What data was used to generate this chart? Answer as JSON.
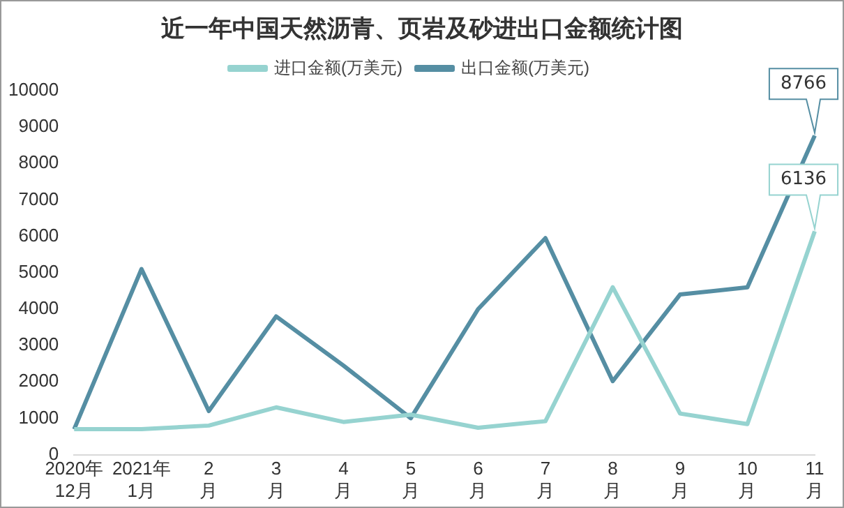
{
  "chart_data": {
    "type": "line",
    "title": "近一年中国天然沥青、页岩及砂进出口金额统计图",
    "categories": [
      "2020年\n12月",
      "2021年\n1月",
      "2\n月",
      "3\n月",
      "4\n月",
      "5\n月",
      "6\n月",
      "7\n月",
      "8\n月",
      "9\n月",
      "10\n月",
      "11\n月"
    ],
    "series": [
      {
        "name": "进口金额(万美元)",
        "color": "#96d3d0",
        "values": [
          700,
          700,
          800,
          1300,
          900,
          1100,
          740,
          920,
          4600,
          1130,
          840,
          6136
        ],
        "value_labels": [
          null,
          null,
          null,
          null,
          null,
          null,
          null,
          null,
          null,
          null,
          null,
          "6136"
        ]
      },
      {
        "name": "出口金额(万美元)",
        "color": "#558ea3",
        "values": [
          700,
          5100,
          1200,
          3800,
          2450,
          1000,
          4000,
          5950,
          2020,
          4400,
          4600,
          8766
        ],
        "value_labels": [
          null,
          null,
          null,
          null,
          null,
          null,
          null,
          null,
          null,
          null,
          null,
          "8766"
        ]
      }
    ],
    "ylim": [
      0,
      10000
    ],
    "yticks": [
      0,
      1000,
      2000,
      3000,
      4000,
      5000,
      6000,
      7000,
      8000,
      9000,
      10000
    ],
    "grid": false,
    "legend": "top",
    "marker": "none",
    "line_style": "solid"
  }
}
